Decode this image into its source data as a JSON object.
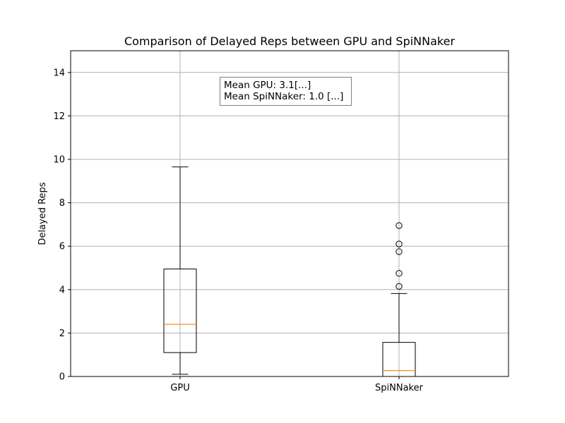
{
  "chart_data": {
    "type": "box",
    "title": "Comparison of Delayed Reps between GPU and SpiNNaker",
    "xlabel": "",
    "ylabel": "Delayed Reps",
    "ylim": [
      0,
      15
    ],
    "yticks": [
      0,
      2,
      4,
      6,
      8,
      10,
      12,
      14
    ],
    "grid": true,
    "categories": [
      "GPU",
      "SpiNNaker"
    ],
    "boxes": [
      {
        "label": "GPU",
        "whisker_low": 0.1,
        "q1": 1.1,
        "median": 2.4,
        "q3": 4.95,
        "whisker_high": 9.65,
        "outliers": []
      },
      {
        "label": "SpiNNaker",
        "whisker_low": 0.0,
        "q1": 0.0,
        "median": 0.27,
        "q3": 1.57,
        "whisker_high": 3.82,
        "outliers": [
          4.15,
          4.75,
          5.75,
          6.1,
          6.95
        ]
      }
    ],
    "colors": {
      "box": "#000000",
      "median": "#ff7f0e",
      "grid": "#b0b0b0"
    },
    "annotation": {
      "lines": [
        "Mean GPU: 3.1[...]",
        "Mean SpiNNaker: 1.0 [...]"
      ]
    }
  }
}
